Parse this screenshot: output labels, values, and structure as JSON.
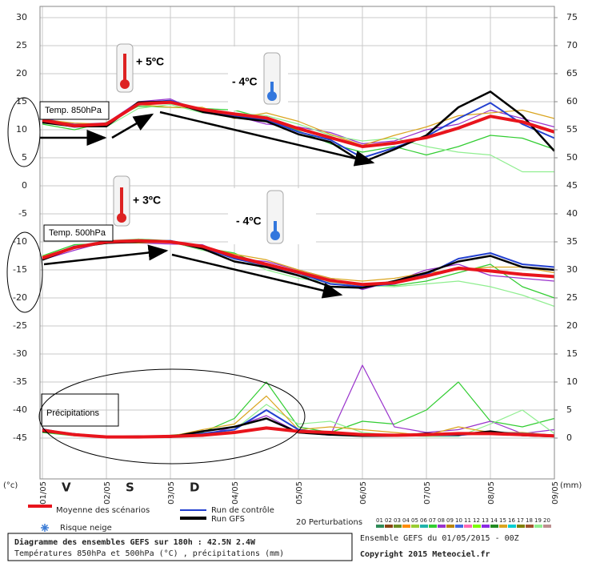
{
  "chart_data": {
    "type": "line",
    "x": [
      0,
      0.5,
      1,
      1.5,
      2,
      2.5,
      3,
      3.5,
      4,
      4.5,
      5,
      5.5,
      6,
      6.5,
      7,
      7.5,
      8
    ],
    "xlim": [
      0,
      8
    ],
    "xticks": [
      {
        "value": 0,
        "label": "01/05"
      },
      {
        "value": 1,
        "label": "02/05"
      },
      {
        "value": 2,
        "label": "03/05"
      },
      {
        "value": 3,
        "label": "04/05"
      },
      {
        "value": 4,
        "label": "05/05"
      },
      {
        "value": 5,
        "label": "06/05"
      },
      {
        "value": 6,
        "label": "07/05"
      },
      {
        "value": 7,
        "label": "08/05"
      },
      {
        "value": 8,
        "label": "09/05"
      }
    ],
    "weekdays": [
      "V",
      "S",
      "D"
    ],
    "ylim": [
      -52,
      32
    ],
    "yticks": [
      30,
      25,
      20,
      15,
      10,
      5,
      0,
      -5,
      -10,
      -15,
      -20,
      -25,
      -30,
      -35,
      -40,
      -45
    ],
    "y_unit": "(°c)",
    "y2lim": [
      -7,
      77
    ],
    "y2ticks": [
      75,
      70,
      65,
      60,
      55,
      50,
      45,
      40,
      35,
      30,
      25,
      20,
      15,
      10,
      5,
      0
    ],
    "y2_unit": "(mm)",
    "grid": true,
    "legend": [
      {
        "name": "Moyenne des scénarios",
        "color": "#e8141c"
      },
      {
        "name": "Run de contrôle",
        "color": "#2340d0"
      },
      {
        "name": "Run GFS",
        "color": "#000000"
      }
    ],
    "snow_label": "Risque neige",
    "perturbations": {
      "label": "20 Perturbations",
      "members": [
        {
          "name": "01",
          "color": "#2e8b57"
        },
        {
          "name": "02",
          "color": "#8b4513"
        },
        {
          "name": "03",
          "color": "#6b8e23"
        },
        {
          "name": "04",
          "color": "#ff8c00"
        },
        {
          "name": "05",
          "color": "#9acd32"
        },
        {
          "name": "06",
          "color": "#20b2aa"
        },
        {
          "name": "07",
          "color": "#32cd32"
        },
        {
          "name": "08",
          "color": "#9932cc"
        },
        {
          "name": "09",
          "color": "#b8860b"
        },
        {
          "name": "10",
          "color": "#4169e1"
        },
        {
          "name": "11",
          "color": "#ff69b4"
        },
        {
          "name": "12",
          "color": "#7cfc00"
        },
        {
          "name": "13",
          "color": "#8a2be2"
        },
        {
          "name": "14",
          "color": "#228b22"
        },
        {
          "name": "15",
          "color": "#daa520"
        },
        {
          "name": "16",
          "color": "#00ced1"
        },
        {
          "name": "17",
          "color": "#808000"
        },
        {
          "name": "18",
          "color": "#a0522d"
        },
        {
          "name": "19",
          "color": "#90ee90"
        },
        {
          "name": "20",
          "color": "#bc8f8f"
        }
      ]
    },
    "panels": [
      {
        "label": "Temp. 850hPa",
        "axis": "y",
        "series": [
          {
            "member": 6,
            "values": [
              11.0,
              10.0,
              11.3,
              14.2,
              14.0,
              13.8,
              13.5,
              12.0,
              9.8,
              7.5,
              6.0,
              7.0,
              5.5,
              7.0,
              9.0,
              8.5,
              6.5
            ]
          },
          {
            "member": 7,
            "values": [
              12.0,
              11.0,
              11.2,
              15.0,
              15.5,
              13.0,
              12.5,
              11.0,
              10.5,
              9.5,
              7.5,
              8.0,
              10.0,
              11.0,
              13.5,
              12.0,
              10.5
            ]
          },
          {
            "member": 18,
            "values": [
              11.5,
              10.8,
              10.5,
              13.8,
              14.5,
              13.0,
              13.0,
              12.5,
              11.0,
              9.0,
              8.0,
              8.5,
              7.0,
              6.0,
              5.5,
              2.5,
              2.5
            ]
          },
          {
            "member": 14,
            "values": [
              11.8,
              11.2,
              11.0,
              14.5,
              14.0,
              14.0,
              12.0,
              13.0,
              11.5,
              9.2,
              7.2,
              9.0,
              10.5,
              12.5,
              13.0,
              13.5,
              12.0
            ]
          },
          {
            "legend": 1,
            "values": [
              11.5,
              10.5,
              10.8,
              14.8,
              15.2,
              13.5,
              12.4,
              11.8,
              9.6,
              8.2,
              5.0,
              6.8,
              8.8,
              12.0,
              14.8,
              11.0,
              8.5
            ]
          },
          {
            "legend": 2,
            "values": [
              11.3,
              10.6,
              10.6,
              14.9,
              15.0,
              13.2,
              12.2,
              11.5,
              9.2,
              7.8,
              4.2,
              6.5,
              9.0,
              14.0,
              16.8,
              12.5,
              6.2
            ]
          },
          {
            "legend": 0,
            "values": [
              11.7,
              10.7,
              11.0,
              14.6,
              14.9,
              13.6,
              12.8,
              12.1,
              10.2,
              8.6,
              7.0,
              7.6,
              8.6,
              10.3,
              12.4,
              11.4,
              9.6
            ]
          }
        ]
      },
      {
        "label": "Temp. 500hPa",
        "axis": "y",
        "series": [
          {
            "member": 6,
            "values": [
              -12.5,
              -10.5,
              -10.3,
              -9.5,
              -9.8,
              -11.0,
              -12.0,
              -14.5,
              -16.0,
              -17.0,
              -17.5,
              -17.8,
              -17.0,
              -15.5,
              -14.0,
              -18.0,
              -20.0
            ]
          },
          {
            "member": 7,
            "values": [
              -13.2,
              -11.5,
              -10.0,
              -10.2,
              -10.4,
              -10.5,
              -13.0,
              -13.5,
              -15.0,
              -16.5,
              -18.5,
              -17.0,
              -15.0,
              -14.0,
              -16.0,
              -16.5,
              -17.0
            ]
          },
          {
            "member": 18,
            "values": [
              -12.8,
              -11.2,
              -9.8,
              -9.5,
              -10.0,
              -11.5,
              -12.5,
              -15.0,
              -16.5,
              -17.2,
              -17.8,
              -18.0,
              -17.5,
              -17.0,
              -18.0,
              -19.5,
              -21.5
            ]
          },
          {
            "member": 14,
            "values": [
              -12.6,
              -10.9,
              -10.1,
              -10.2,
              -10.0,
              -10.8,
              -12.2,
              -13.2,
              -15.0,
              -16.5,
              -17.0,
              -16.5,
              -15.5,
              -15.0,
              -14.5,
              -14.5,
              -15.5
            ]
          },
          {
            "legend": 1,
            "values": [
              -13.0,
              -10.8,
              -10.2,
              -10.0,
              -9.8,
              -11.0,
              -13.0,
              -14.2,
              -15.6,
              -17.5,
              -18.0,
              -17.5,
              -15.8,
              -13.0,
              -12.0,
              -14.0,
              -14.5
            ]
          },
          {
            "legend": 2,
            "values": [
              -13.2,
              -11.0,
              -10.2,
              -10.0,
              -9.9,
              -11.2,
              -13.5,
              -14.5,
              -16.0,
              -18.0,
              -18.2,
              -17.0,
              -15.5,
              -13.5,
              -12.5,
              -14.5,
              -15.0
            ]
          },
          {
            "legend": 0,
            "values": [
              -12.9,
              -11.0,
              -10.0,
              -9.8,
              -10.0,
              -10.8,
              -12.6,
              -14.0,
              -15.4,
              -16.9,
              -17.6,
              -17.3,
              -16.1,
              -14.7,
              -15.2,
              -15.8,
              -16.2
            ]
          }
        ]
      },
      {
        "label": "Précipitations",
        "axis": "y2",
        "series": [
          {
            "member": 6,
            "values": [
              1.0,
              0.4,
              0.3,
              0.2,
              0.5,
              1.0,
              3.5,
              10.0,
              2.0,
              1.0,
              3.0,
              2.5,
              5.0,
              10.0,
              3.0,
              2.0,
              3.5
            ]
          },
          {
            "member": 7,
            "values": [
              1.5,
              0.8,
              0.2,
              0.2,
              0.3,
              0.5,
              2.0,
              4.0,
              1.0,
              0.5,
              13.0,
              2.0,
              1.0,
              1.5,
              3.0,
              0.8,
              1.5
            ]
          },
          {
            "member": 18,
            "values": [
              1.3,
              0.5,
              0.2,
              0.1,
              0.4,
              0.6,
              1.5,
              6.0,
              2.5,
              3.0,
              1.0,
              0.5,
              0.3,
              0.3,
              2.5,
              5.0,
              0.8
            ]
          },
          {
            "member": 14,
            "values": [
              1.4,
              0.6,
              0.2,
              0.2,
              0.3,
              1.5,
              2.5,
              7.5,
              1.5,
              2.0,
              1.5,
              1.0,
              0.5,
              2.0,
              1.0,
              1.0,
              0.5
            ]
          },
          {
            "legend": 1,
            "values": [
              1.6,
              0.6,
              0.2,
              0.2,
              0.2,
              0.8,
              1.5,
              5.0,
              1.5,
              0.8,
              0.5,
              0.4,
              0.5,
              0.5,
              1.0,
              0.8,
              0.5
            ]
          },
          {
            "legend": 2,
            "values": [
              1.2,
              0.7,
              0.2,
              0.3,
              0.2,
              1.2,
              2.0,
              3.5,
              1.0,
              0.6,
              0.4,
              0.4,
              0.8,
              0.6,
              1.2,
              0.5,
              0.3
            ]
          },
          {
            "legend": 0,
            "values": [
              1.4,
              0.6,
              0.2,
              0.2,
              0.3,
              0.5,
              1.0,
              1.8,
              1.2,
              1.0,
              0.6,
              0.5,
              0.6,
              0.8,
              0.8,
              0.6,
              0.4
            ]
          }
        ]
      }
    ],
    "annotations": [
      "+ 5ºC",
      "- 4ºC",
      "+ 3ºC",
      "- 4ºC"
    ],
    "title": "Diagramme des ensembles GEFS sur 180h : 42.5N 2.4W",
    "subtitle": "Températures 850hPa et 500hPa (°C) , précipitations (mm)",
    "run": "Ensemble GEFS du 01/05/2015 - 00Z",
    "copyright": "Copyright 2015 Meteociel.fr"
  }
}
